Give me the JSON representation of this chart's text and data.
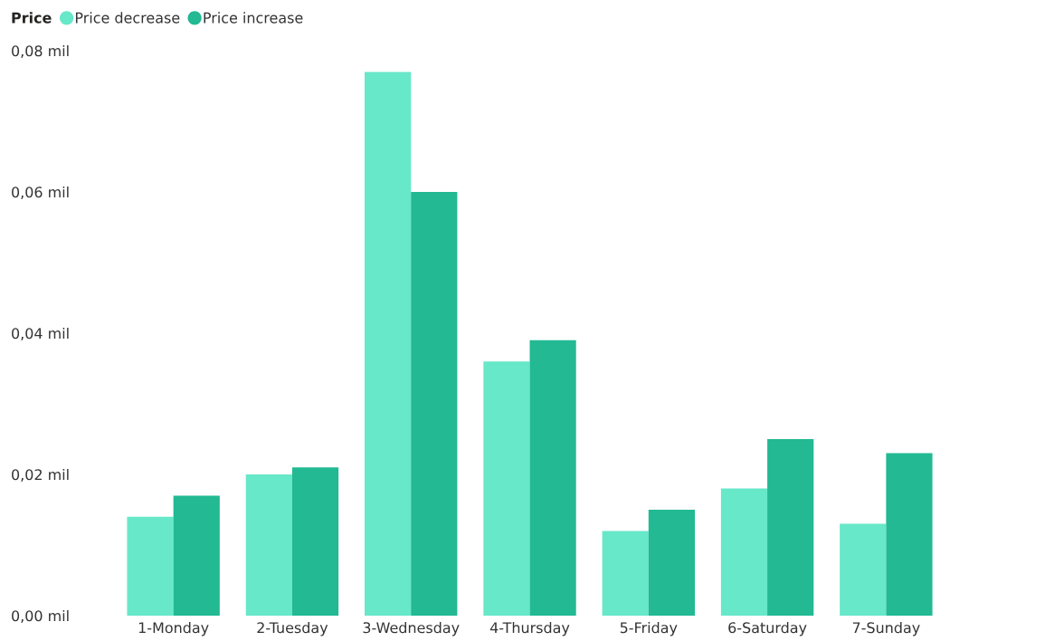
{
  "chart_data": {
    "type": "bar",
    "legend_title": "Price",
    "categories": [
      "1-Monday",
      "2-Tuesday",
      "3-Wednesday",
      "4-Thursday",
      "5-Friday",
      "6-Saturday",
      "7-Sunday"
    ],
    "series": [
      {
        "name": "Price decrease",
        "color": "#66e8c9",
        "values": [
          0.014,
          0.02,
          0.077,
          0.036,
          0.012,
          0.018,
          0.013
        ]
      },
      {
        "name": "Price increase",
        "color": "#22b993",
        "values": [
          0.017,
          0.021,
          0.06,
          0.039,
          0.015,
          0.025,
          0.023
        ]
      }
    ],
    "ylim": [
      0,
      0.08
    ],
    "yticks": [
      {
        "value": 0,
        "label": "0,00 mil"
      },
      {
        "value": 0.02,
        "label": "0,02 mil"
      },
      {
        "value": 0.04,
        "label": "0,04 mil"
      },
      {
        "value": 0.06,
        "label": "0,06 mil"
      },
      {
        "value": 0.08,
        "label": "0,08 mil"
      }
    ],
    "grid": false,
    "legend": "top left",
    "marker": "circle"
  }
}
